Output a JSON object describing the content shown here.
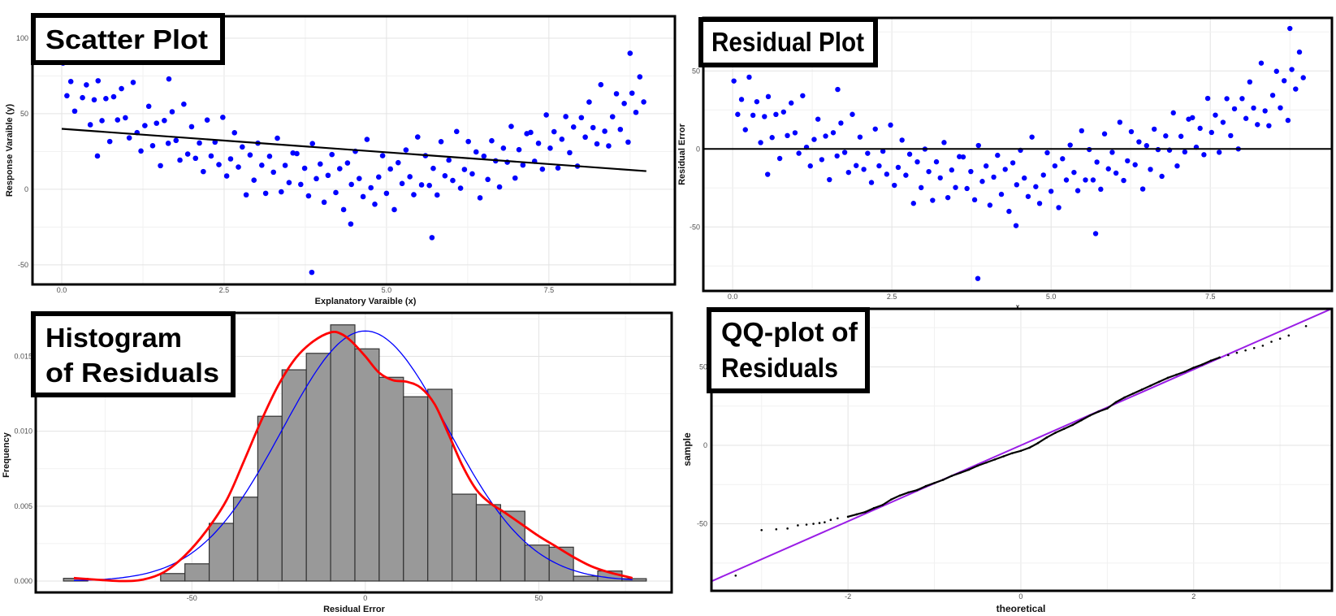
{
  "chart_data": [
    {
      "type": "scatter",
      "title": "Scatter Plot",
      "xlabel": "Explanatory Varaible (x)",
      "ylabel": "Response Varaible (y)",
      "xlim": [
        -0.45,
        9.44
      ],
      "ylim": [
        -63,
        114.5
      ],
      "xticks": [
        0,
        2.5,
        5,
        7.5
      ],
      "xtick_labels": [
        "0.0",
        "2.5",
        "5.0",
        "7.5"
      ],
      "yticks": [
        -50,
        0,
        50,
        100
      ],
      "ytick_labels": [
        "-50",
        "0",
        "50",
        "100"
      ],
      "grid": true,
      "point_color": "#0000ff",
      "fit_line": {
        "intercept": 40,
        "slope": -3.11,
        "color": "#000000"
      },
      "points": [
        [
          0.02,
          83.5
        ],
        [
          0.08,
          61.9
        ],
        [
          0.14,
          71.3
        ],
        [
          0.2,
          51.7
        ],
        [
          0.26,
          85.2
        ],
        [
          0.32,
          60.6
        ],
        [
          0.38,
          69.1
        ],
        [
          0.44,
          42.7
        ],
        [
          0.5,
          59.2
        ],
        [
          0.56,
          71.8
        ],
        [
          0.62,
          45.4
        ],
        [
          0.68,
          60.0
        ],
        [
          0.74,
          31.6
        ],
        [
          0.8,
          61.2
        ],
        [
          0.86,
          45.9
        ],
        [
          0.92,
          66.6
        ],
        [
          0.98,
          47.3
        ],
        [
          1.04,
          34.0
        ],
        [
          1.1,
          70.7
        ],
        [
          1.16,
          37.5
        ],
        [
          1.22,
          25.3
        ],
        [
          1.28,
          42.1
        ],
        [
          1.34,
          54.9
        ],
        [
          1.4,
          28.8
        ],
        [
          1.46,
          43.7
        ],
        [
          1.52,
          15.6
        ],
        [
          1.58,
          45.5
        ],
        [
          1.64,
          30.4
        ],
        [
          1.7,
          51.3
        ],
        [
          1.76,
          32.3
        ],
        [
          1.82,
          19.3
        ],
        [
          1.88,
          56.3
        ],
        [
          1.94,
          23.3
        ],
        [
          2.0,
          41.4
        ],
        [
          2.06,
          20.5
        ],
        [
          2.12,
          30.6
        ],
        [
          2.18,
          11.7
        ],
        [
          2.24,
          45.8
        ],
        [
          2.3,
          22.0
        ],
        [
          2.36,
          31.2
        ],
        [
          2.42,
          16.3
        ],
        [
          2.48,
          47.6
        ],
        [
          2.54,
          8.8
        ],
        [
          2.6,
          20.1
        ],
        [
          2.66,
          37.4
        ],
        [
          2.72,
          14.7
        ],
        [
          2.78,
          28.0
        ],
        [
          2.84,
          -3.7
        ],
        [
          2.9,
          22.7
        ],
        [
          2.96,
          6.0
        ],
        [
          3.02,
          30.5
        ],
        [
          3.08,
          15.9
        ],
        [
          3.14,
          -2.7
        ],
        [
          3.2,
          21.8
        ],
        [
          3.26,
          11.3
        ],
        [
          3.32,
          33.8
        ],
        [
          3.38,
          -1.7
        ],
        [
          3.44,
          15.8
        ],
        [
          3.5,
          4.4
        ],
        [
          3.56,
          24.0
        ],
        [
          3.62,
          23.6
        ],
        [
          3.68,
          3.2
        ],
        [
          3.74,
          13.9
        ],
        [
          3.8,
          -4.4
        ],
        [
          3.86,
          30.2
        ],
        [
          3.92,
          7.0
        ],
        [
          3.98,
          16.7
        ],
        [
          4.04,
          -8.6
        ],
        [
          4.1,
          9.2
        ],
        [
          4.16,
          23.0
        ],
        [
          4.22,
          -2.2
        ],
        [
          4.28,
          13.6
        ],
        [
          4.34,
          -13.5
        ],
        [
          4.4,
          17.4
        ],
        [
          4.46,
          3.2
        ],
        [
          4.52,
          25.1
        ],
        [
          4.58,
          7.1
        ],
        [
          4.64,
          -4.9
        ],
        [
          4.7,
          33.0
        ],
        [
          4.76,
          1.0
        ],
        [
          4.82,
          -9.9
        ],
        [
          4.88,
          8.1
        ],
        [
          4.94,
          22.2
        ],
        [
          5.0,
          -2.7
        ],
        [
          5.06,
          13.4
        ],
        [
          5.12,
          -13.5
        ],
        [
          5.18,
          17.6
        ],
        [
          5.24,
          3.8
        ],
        [
          5.3,
          26.0
        ],
        [
          5.36,
          8.3
        ],
        [
          5.42,
          -3.6
        ],
        [
          5.48,
          34.6
        ],
        [
          5.54,
          2.9
        ],
        [
          5.6,
          22.2
        ],
        [
          5.66,
          2.5
        ],
        [
          5.72,
          13.8
        ],
        [
          5.78,
          -3.8
        ],
        [
          5.84,
          31.5
        ],
        [
          5.9,
          8.9
        ],
        [
          5.96,
          19.3
        ],
        [
          6.02,
          5.8
        ],
        [
          6.08,
          38.2
        ],
        [
          6.14,
          0.7
        ],
        [
          6.2,
          13.1
        ],
        [
          6.26,
          31.6
        ],
        [
          6.32,
          10.2
        ],
        [
          6.38,
          24.7
        ],
        [
          6.44,
          -5.7
        ],
        [
          6.5,
          21.9
        ],
        [
          6.56,
          6.5
        ],
        [
          6.62,
          32.1
        ],
        [
          6.68,
          18.8
        ],
        [
          6.74,
          1.5
        ],
        [
          6.8,
          27.2
        ],
        [
          6.86,
          17.9
        ],
        [
          6.92,
          41.6
        ],
        [
          6.98,
          7.4
        ],
        [
          7.04,
          26.2
        ],
        [
          7.1,
          16.0
        ],
        [
          7.16,
          36.8
        ],
        [
          7.22,
          37.6
        ],
        [
          7.28,
          18.5
        ],
        [
          7.34,
          30.4
        ],
        [
          7.4,
          13.3
        ],
        [
          7.46,
          49.2
        ],
        [
          7.52,
          27.2
        ],
        [
          7.58,
          38.1
        ],
        [
          7.64,
          14.1
        ],
        [
          7.7,
          33.1
        ],
        [
          7.76,
          48.1
        ],
        [
          7.82,
          24.2
        ],
        [
          7.88,
          41.2
        ],
        [
          7.94,
          15.3
        ],
        [
          8.0,
          47.4
        ],
        [
          8.06,
          34.5
        ],
        [
          8.12,
          57.7
        ],
        [
          8.18,
          40.8
        ],
        [
          8.24,
          30.0
        ],
        [
          8.3,
          69.2
        ],
        [
          8.36,
          38.4
        ],
        [
          8.42,
          28.7
        ],
        [
          8.48,
          48.0
        ],
        [
          8.54,
          63.2
        ],
        [
          8.6,
          39.6
        ],
        [
          8.66,
          56.8
        ],
        [
          8.72,
          31.2
        ],
        [
          8.78,
          63.6
        ],
        [
          8.84,
          50.9
        ],
        [
          8.9,
          74.4
        ],
        [
          8.96,
          57.8
        ],
        [
          3.85,
          -55
        ],
        [
          8.75,
          90
        ],
        [
          0.55,
          22
        ],
        [
          4.45,
          -23
        ],
        [
          5.7,
          -32
        ],
        [
          1.65,
          73
        ]
      ]
    },
    {
      "type": "scatter",
      "title": "Residual Plot",
      "xlabel": "x",
      "ylabel": "Residual Error",
      "xlim": [
        -0.46,
        9.41
      ],
      "ylim": [
        -91,
        84
      ],
      "xticks": [
        0,
        2.5,
        5,
        7.5
      ],
      "xtick_labels": [
        "0.0",
        "2.5",
        "5.0",
        "7.5"
      ],
      "yticks": [
        -50,
        0,
        50
      ],
      "ytick_labels": [
        "-50",
        "0",
        "50"
      ],
      "grid": true,
      "point_color": "#0000ff",
      "reference_line": {
        "y": 0,
        "color": "#000000"
      },
      "residuals_of": "Scatter Plot fit_line"
    },
    {
      "type": "bar",
      "title_lines": [
        "Histogram",
        "of Residuals"
      ],
      "xlabel": "Residual Error",
      "ylabel": "Frequency",
      "xlim": [
        -95,
        88.3
      ],
      "ylim": [
        -0.00076,
        0.0179
      ],
      "xticks": [
        -50,
        0,
        50
      ],
      "xtick_labels": [
        "-50",
        "0",
        "50"
      ],
      "yticks": [
        0,
        0.005,
        0.01,
        0.015
      ],
      "ytick_labels": [
        "0.000",
        "0.005",
        "0.010",
        "0.015"
      ],
      "grid": true,
      "bar_color": "#999999",
      "bin_start": -87,
      "bin_width": 7,
      "densities": [
        0.00018,
        0,
        0,
        0,
        0.0005,
        0.00115,
        0.00385,
        0.0056,
        0.011,
        0.0141,
        0.0152,
        0.0171,
        0.0155,
        0.0136,
        0.0123,
        0.0128,
        0.0058,
        0.0051,
        0.00466,
        0.0024,
        0.00226,
        0.00032,
        0.00067,
        0.00016
      ],
      "normal_curve": {
        "mean": 0,
        "sd": 23.9,
        "range": [
          -84,
          77
        ],
        "color": "#0000ff"
      },
      "density_curve": {
        "color": "#ff0000",
        "points": [
          [
            -84,
            0.0002
          ],
          [
            -78,
            0.0001
          ],
          [
            -70,
            0.0
          ],
          [
            -64,
            0.0001
          ],
          [
            -58,
            0.0006
          ],
          [
            -52,
            0.0017
          ],
          [
            -46,
            0.0033
          ],
          [
            -40,
            0.0054
          ],
          [
            -35,
            0.008
          ],
          [
            -30,
            0.0107
          ],
          [
            -25,
            0.0131
          ],
          [
            -20,
            0.0149
          ],
          [
            -15,
            0.016
          ],
          [
            -10,
            0.0166
          ],
          [
            -7,
            0.0165
          ],
          [
            -4,
            0.016
          ],
          [
            0,
            0.015
          ],
          [
            4,
            0.0139
          ],
          [
            8,
            0.0134
          ],
          [
            12,
            0.0133
          ],
          [
            16,
            0.0129
          ],
          [
            20,
            0.0118
          ],
          [
            24,
            0.0098
          ],
          [
            28,
            0.0077
          ],
          [
            32,
            0.0061
          ],
          [
            36,
            0.0052
          ],
          [
            40,
            0.0046
          ],
          [
            45,
            0.0038
          ],
          [
            50,
            0.003
          ],
          [
            55,
            0.0023
          ],
          [
            60,
            0.0016
          ],
          [
            65,
            0.001
          ],
          [
            70,
            0.0006
          ],
          [
            77,
            0.0002
          ]
        ]
      }
    },
    {
      "type": "scatter",
      "title_lines": [
        "QQ-plot of",
        "Residuals"
      ],
      "xlabel": "theoretical",
      "ylabel": "sample",
      "xlim": [
        -3.58,
        3.6
      ],
      "ylim": [
        -92.7,
        87
      ],
      "xticks": [
        -2,
        0,
        2
      ],
      "xtick_labels": [
        "-2",
        "0",
        "2"
      ],
      "yticks": [
        -50,
        0,
        50
      ],
      "ytick_labels": [
        "-50",
        "0",
        "50"
      ],
      "grid": true,
      "point_color": "#000000",
      "reference_line": {
        "intercept": 0,
        "slope": 24.2,
        "color": "#9a1de6"
      },
      "points": [
        [
          -3.3,
          -83
        ],
        [
          -3.0,
          -54
        ],
        [
          -2.83,
          -53.5
        ],
        [
          -2.7,
          -53
        ],
        [
          -2.58,
          -51
        ],
        [
          -2.48,
          -50.5
        ],
        [
          -2.4,
          -50
        ],
        [
          -2.33,
          -49.5
        ],
        [
          -2.27,
          -49
        ],
        [
          -2.2,
          -47.5
        ],
        [
          -2.12,
          -46.5
        ],
        [
          -2.0,
          -45.5
        ],
        [
          -1.9,
          -44
        ],
        [
          -1.8,
          -42.5
        ],
        [
          -1.7,
          -40
        ],
        [
          -1.6,
          -38
        ],
        [
          -1.5,
          -34.5
        ],
        [
          -1.4,
          -32
        ],
        [
          -1.3,
          -30
        ],
        [
          -1.2,
          -28.5
        ],
        [
          -1.1,
          -26
        ],
        [
          -1.0,
          -24
        ],
        [
          -0.9,
          -22
        ],
        [
          -0.8,
          -19.5
        ],
        [
          -0.7,
          -17.5
        ],
        [
          -0.6,
          -15.5
        ],
        [
          -0.5,
          -13
        ],
        [
          -0.4,
          -11
        ],
        [
          -0.3,
          -9
        ],
        [
          -0.2,
          -7
        ],
        [
          -0.1,
          -5
        ],
        [
          0.0,
          -3.5
        ],
        [
          0.1,
          -1.5
        ],
        [
          0.2,
          1.5
        ],
        [
          0.3,
          5
        ],
        [
          0.4,
          8
        ],
        [
          0.5,
          10.5
        ],
        [
          0.6,
          13
        ],
        [
          0.7,
          16
        ],
        [
          0.8,
          19
        ],
        [
          0.9,
          21.5
        ],
        [
          1.0,
          23.5
        ],
        [
          1.1,
          27.5
        ],
        [
          1.2,
          30.5
        ],
        [
          1.3,
          33
        ],
        [
          1.4,
          35.5
        ],
        [
          1.5,
          38
        ],
        [
          1.6,
          40.5
        ],
        [
          1.7,
          43
        ],
        [
          1.8,
          45
        ],
        [
          1.9,
          47
        ],
        [
          2.0,
          49.5
        ],
        [
          2.1,
          51.5
        ],
        [
          2.2,
          54
        ],
        [
          2.3,
          56
        ],
        [
          2.4,
          57.5
        ],
        [
          2.5,
          59
        ],
        [
          2.6,
          60.5
        ],
        [
          2.7,
          62
        ],
        [
          2.8,
          63.5
        ],
        [
          2.9,
          66
        ],
        [
          3.0,
          68
        ],
        [
          3.1,
          70
        ],
        [
          3.3,
          76
        ]
      ]
    }
  ]
}
